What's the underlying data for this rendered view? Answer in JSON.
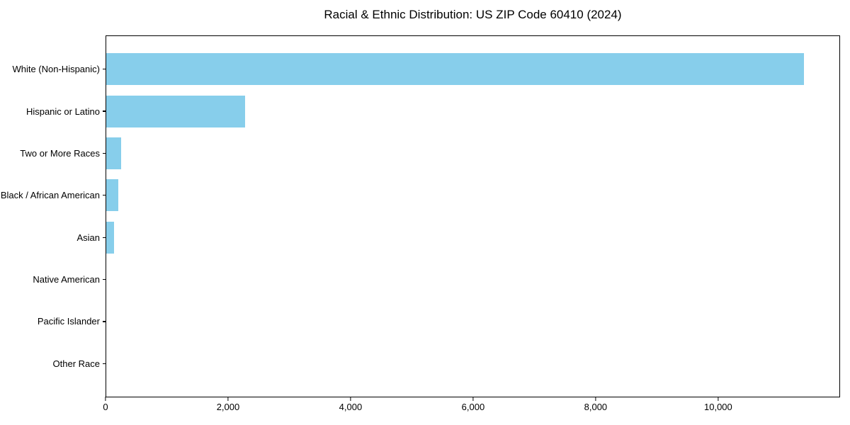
{
  "figure": {
    "background": "#ffffff"
  },
  "chart_data": {
    "type": "bar",
    "orientation": "horizontal",
    "title": "Racial & Ethnic Distribution: US ZIP Code 60410 (2024)",
    "categories": [
      "White (Non-Hispanic)",
      "Hispanic or Latino",
      "Two or More Races",
      "Black / African American",
      "Asian",
      "Native American",
      "Pacific Islander",
      "Other Race"
    ],
    "values": [
      11410,
      2265,
      243,
      195,
      125,
      0,
      0,
      0
    ],
    "xlabel": "",
    "ylabel": "",
    "xlim": [
      0,
      11990
    ],
    "xticks": [
      0,
      2000,
      4000,
      6000,
      8000,
      10000
    ],
    "xtick_labels": [
      "0",
      "2,000",
      "4,000",
      "6,000",
      "8,000",
      "10,000"
    ],
    "bar_color": "#87CEEB",
    "axis_color": "#000000",
    "grid": false,
    "legend": null
  }
}
